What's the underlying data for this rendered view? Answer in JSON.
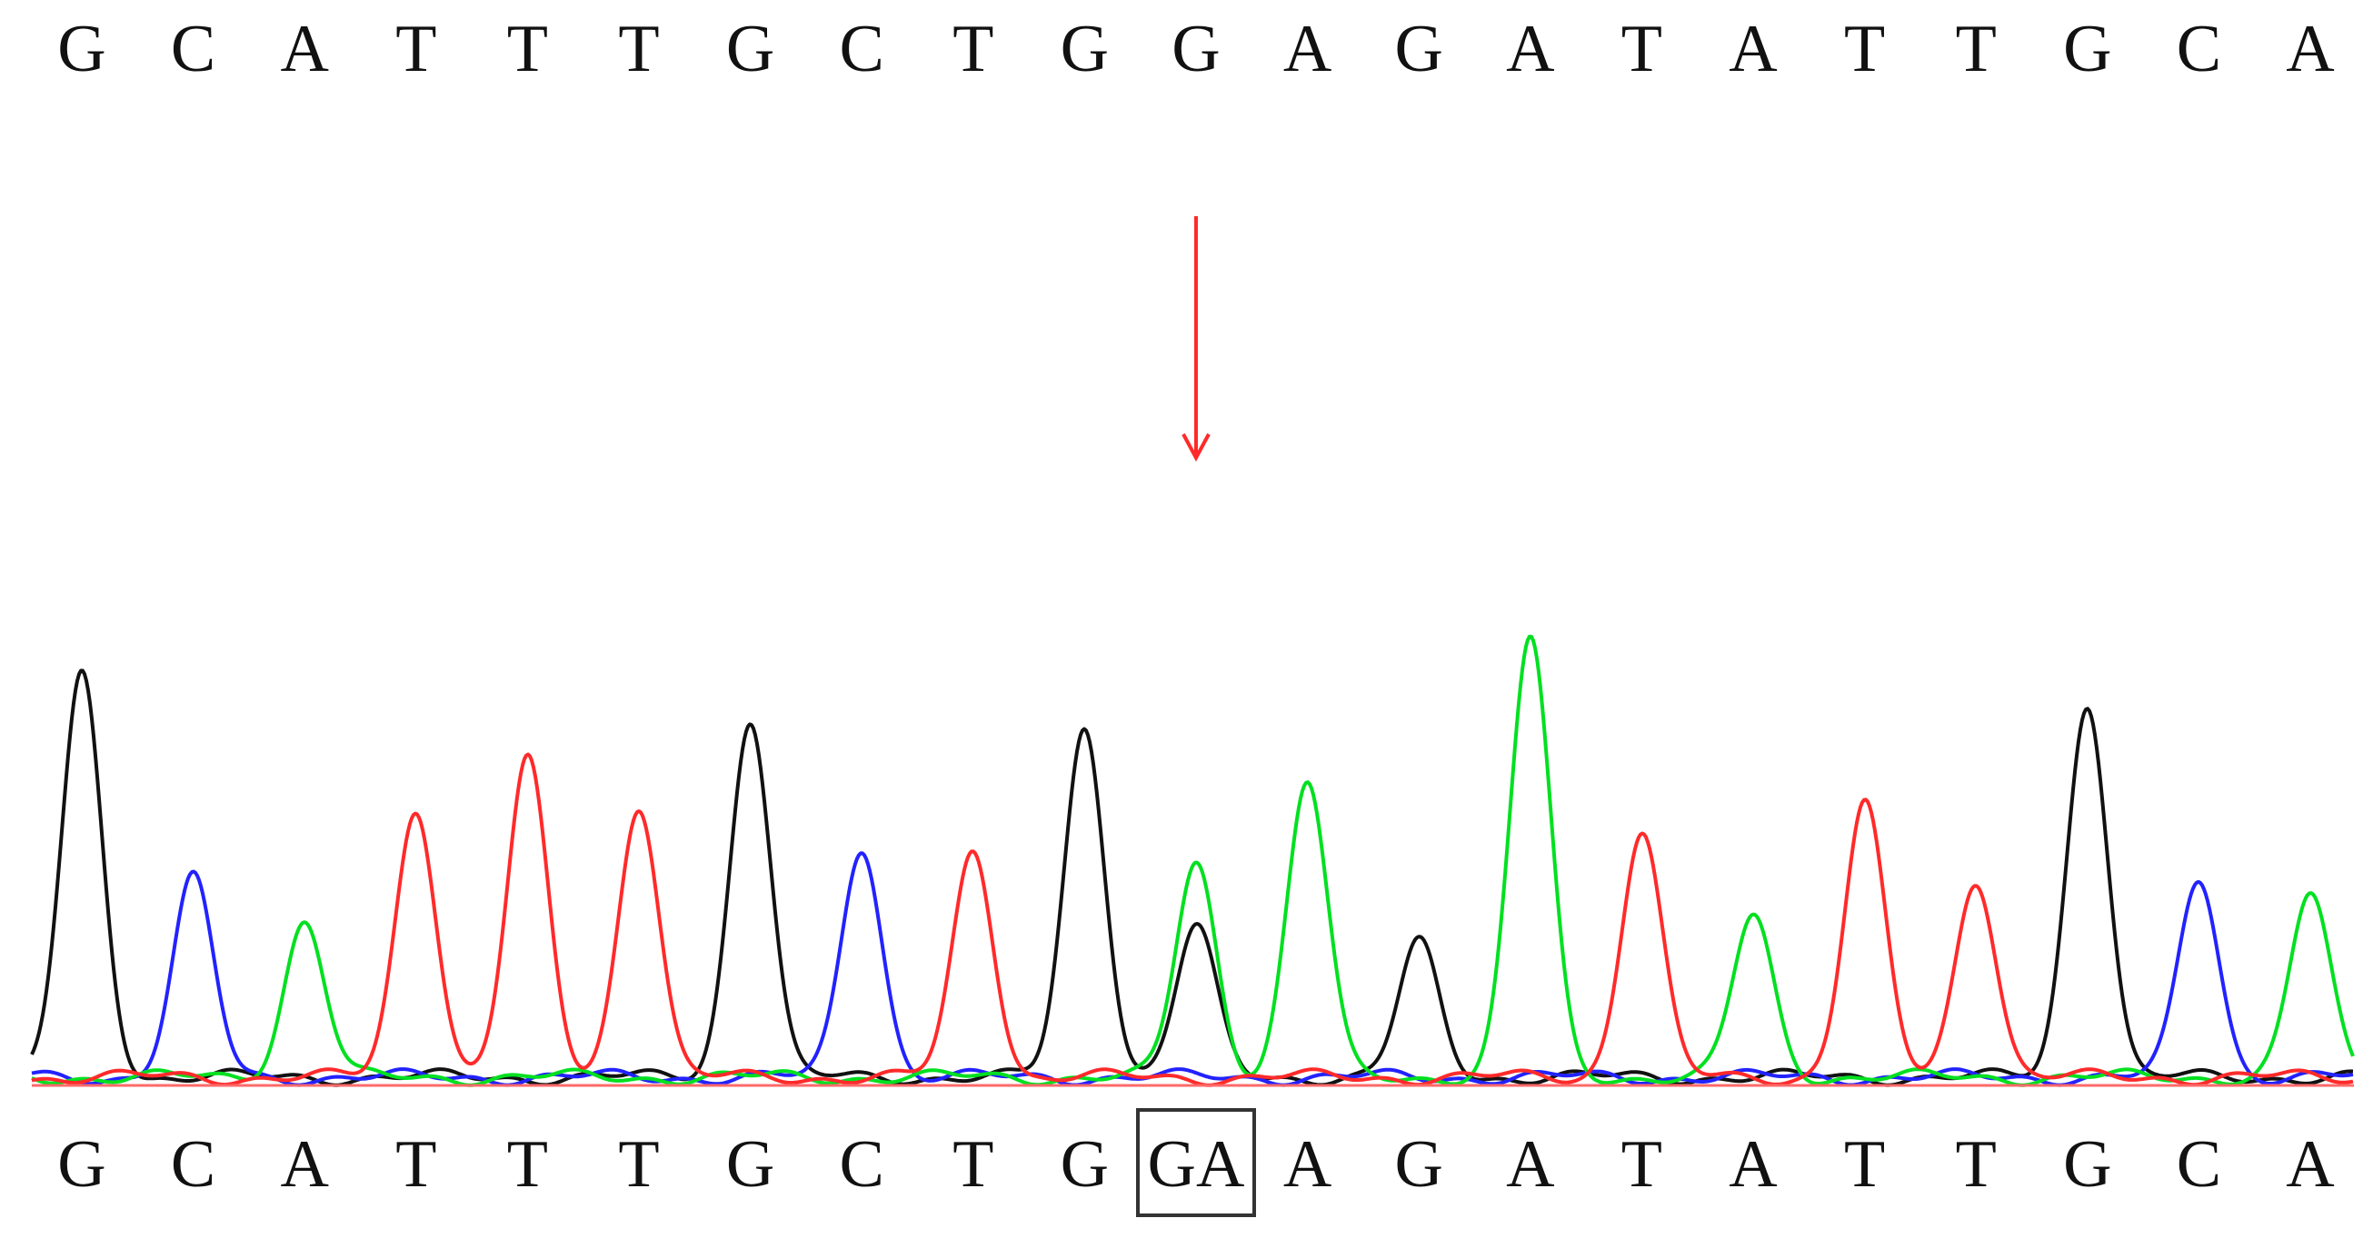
{
  "reference_sequence": [
    "G",
    "C",
    "A",
    "T",
    "T",
    "T",
    "G",
    "C",
    "T",
    "G",
    "G",
    "A",
    "G",
    "A",
    "T",
    "A",
    "T",
    "T",
    "G",
    "C",
    "A"
  ],
  "sample_sequence": [
    "G",
    "C",
    "A",
    "T",
    "T",
    "T",
    "G",
    "C",
    "T",
    "G",
    "GA",
    "A",
    "G",
    "A",
    "T",
    "A",
    "T",
    "T",
    "G",
    "C",
    "A"
  ],
  "highlighted_call_index": 10,
  "base_colors": {
    "A": "#00e020",
    "C": "#2222ff",
    "G": "#111111",
    "T": "#ff2a2a"
  },
  "arrow_color": "#ff2a2a",
  "chart_data": {
    "type": "line",
    "xlabel": "",
    "ylabel": "",
    "grid": false,
    "ylim": [
      0,
      100
    ],
    "series": [
      {
        "base": "G",
        "color": "#111111",
        "peaks": [
          {
            "pos": 0,
            "h": 75
          },
          {
            "pos": 6,
            "h": 67
          },
          {
            "pos": 9,
            "h": 65
          },
          {
            "pos": 10,
            "h": 28
          },
          {
            "pos": 12,
            "h": 25
          },
          {
            "pos": 18,
            "h": 70
          }
        ]
      },
      {
        "base": "C",
        "color": "#2222ff",
        "peaks": [
          {
            "pos": 1,
            "h": 37
          },
          {
            "pos": 7,
            "h": 43
          },
          {
            "pos": 19,
            "h": 37
          }
        ]
      },
      {
        "base": "A",
        "color": "#00e020",
        "peaks": [
          {
            "pos": 2,
            "h": 29
          },
          {
            "pos": 10,
            "h": 40
          },
          {
            "pos": 11,
            "h": 55
          },
          {
            "pos": 13,
            "h": 82
          },
          {
            "pos": 15,
            "h": 30
          },
          {
            "pos": 20,
            "h": 34
          }
        ]
      },
      {
        "base": "T",
        "color": "#ff2a2a",
        "peaks": [
          {
            "pos": 3,
            "h": 50
          },
          {
            "pos": 4,
            "h": 59
          },
          {
            "pos": 5,
            "h": 51
          },
          {
            "pos": 8,
            "h": 42
          },
          {
            "pos": 14,
            "h": 46
          },
          {
            "pos": 16,
            "h": 51
          },
          {
            "pos": 17,
            "h": 37
          }
        ]
      }
    ]
  }
}
